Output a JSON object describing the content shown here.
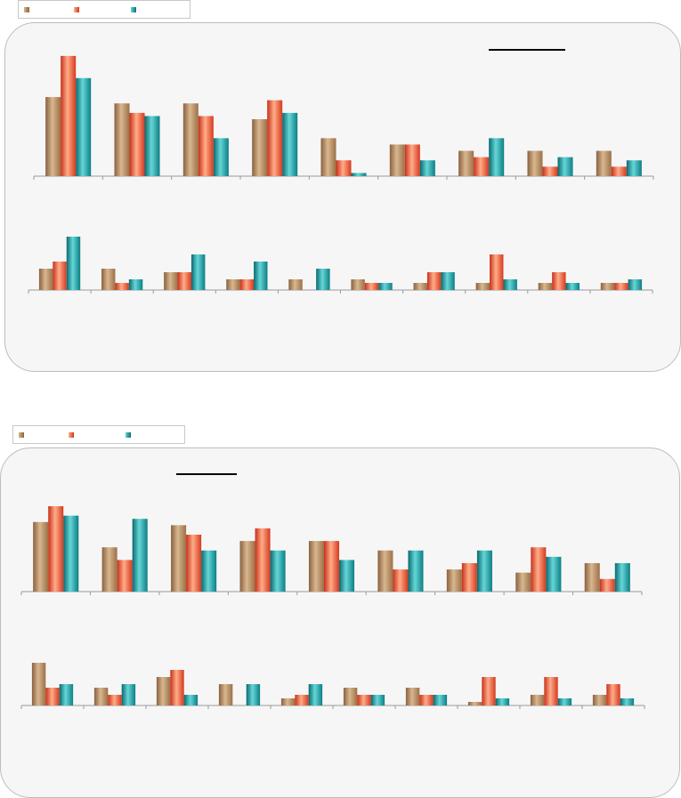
{
  "colors": {
    "series1": "#b88a5e",
    "series2": "#ee5a3a",
    "series3": "#1a9a9e",
    "panel_bg": "#f6f6f6",
    "axis": "#9a9a9a"
  },
  "chart_data": [
    {
      "type": "bar",
      "subplot": "top-row",
      "categories": [
        "",
        "",
        "",
        "",
        "",
        "",
        "",
        "",
        ""
      ],
      "series": [
        {
          "values": [
            25,
            23,
            23,
            18,
            12,
            10,
            8,
            8,
            8
          ]
        },
        {
          "values": [
            38,
            20,
            19,
            24,
            5,
            10,
            6,
            3,
            3
          ]
        },
        {
          "values": [
            31,
            19,
            12,
            20,
            1,
            5,
            12,
            6,
            5
          ]
        }
      ],
      "ylim": [
        0,
        45
      ]
    },
    {
      "type": "bar",
      "subplot": "bottom-row",
      "categories": [
        "",
        "",
        "",
        "",
        "",
        "",
        "",
        "",
        "",
        ""
      ],
      "series": [
        {
          "values": [
            6,
            6,
            5,
            3,
            3,
            3,
            2,
            2,
            2,
            2
          ]
        },
        {
          "values": [
            8,
            2,
            5,
            3,
            0,
            2,
            5,
            10,
            5,
            2
          ]
        },
        {
          "values": [
            15,
            3,
            10,
            8,
            6,
            2,
            5,
            3,
            2,
            3
          ]
        }
      ],
      "ylim": [
        0,
        40
      ]
    },
    {
      "type": "bar",
      "subplot": "top-row",
      "categories": [
        "",
        "",
        "",
        "",
        "",
        "",
        "",
        "",
        ""
      ],
      "series": [
        {
          "values": [
            22,
            14,
            21,
            16,
            16,
            13,
            7,
            6,
            9
          ]
        },
        {
          "values": [
            27,
            10,
            18,
            20,
            16,
            7,
            9,
            14,
            4
          ]
        },
        {
          "values": [
            24,
            23,
            13,
            13,
            10,
            13,
            13,
            11,
            9
          ]
        }
      ],
      "ylim": [
        0,
        45
      ]
    },
    {
      "type": "bar",
      "subplot": "bottom-row",
      "categories": [
        "",
        "",
        "",
        "",
        "",
        "",
        "",
        "",
        "",
        ""
      ],
      "series": [
        {
          "values": [
            12,
            5,
            8,
            6,
            2,
            5,
            5,
            1,
            3,
            3
          ]
        },
        {
          "values": [
            5,
            3,
            10,
            0,
            3,
            3,
            3,
            8,
            8,
            6
          ]
        },
        {
          "values": [
            6,
            6,
            3,
            6,
            6,
            3,
            3,
            2,
            2,
            2
          ]
        }
      ],
      "ylim": [
        0,
        40
      ]
    }
  ]
}
